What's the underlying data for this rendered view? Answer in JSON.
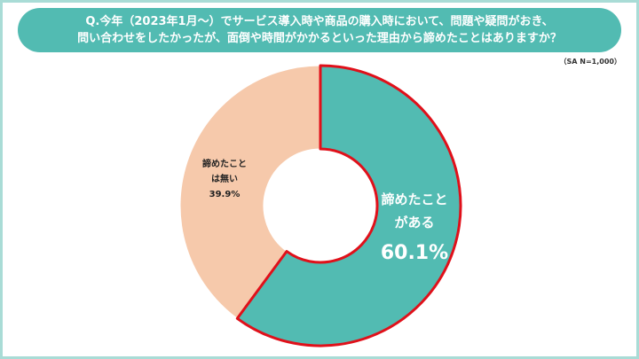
{
  "question": {
    "line1": "Q.今年（2023年1月～）でサービス導入時や商品の購入時において、問題や疑問がおき、",
    "line2": "問い合わせをしたかったが、面倒や時間がかかるといった理由から諦めたことはありますか？"
  },
  "sample_note": "（SA N=1,000）",
  "colors": {
    "banner": "#52bbb2",
    "frame": "#a9dcd6",
    "slice_yes": "#52bbb2",
    "slice_no": "#f6c9ab",
    "highlight_stroke": "#e0101a"
  },
  "chart_data": {
    "type": "pie",
    "donut": true,
    "slices": [
      {
        "label_line1": "諦めたこと",
        "label_line2": "がある",
        "value": 60.1,
        "value_text": "60.1%"
      },
      {
        "label_line1": "諦めたこと",
        "label_line2": "は無い",
        "value": 39.9,
        "value_text": "39.9%"
      }
    ]
  }
}
